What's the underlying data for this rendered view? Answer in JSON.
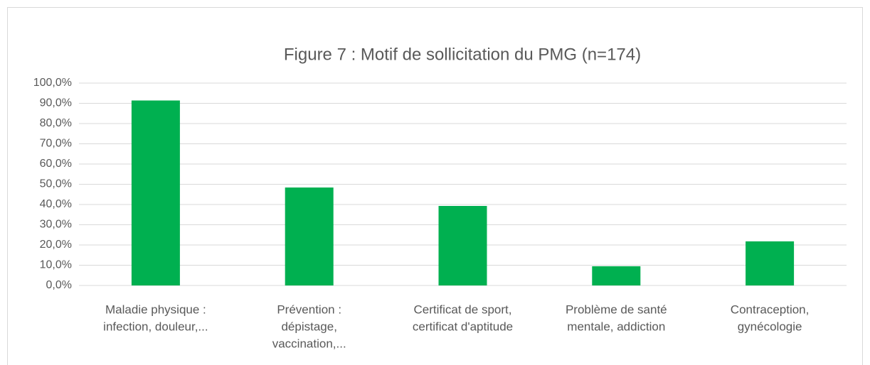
{
  "chart_data": {
    "type": "bar",
    "title": "Figure 7 : Motif de sollicitation du PMG (n=174)",
    "categories": [
      [
        "Maladie physique :",
        "infection, douleur,..."
      ],
      [
        "Prévention :",
        "dépistage,",
        "vaccination,..."
      ],
      [
        "Certificat de sport,",
        "certificat d'aptitude"
      ],
      [
        "Problème de santé",
        "mentale, addiction"
      ],
      [
        "Contraception,",
        "gynécologie"
      ]
    ],
    "values": [
      91.4,
      48.4,
      39.3,
      9.5,
      21.8
    ],
    "color": "#00b050",
    "ylim": [
      0,
      100
    ],
    "yticks": [
      {
        "value": 0,
        "label": "0,0%"
      },
      {
        "value": 10,
        "label": "10,0%"
      },
      {
        "value": 20,
        "label": "20,0%"
      },
      {
        "value": 30,
        "label": "30,0%"
      },
      {
        "value": 40,
        "label": "40,0%"
      },
      {
        "value": 50,
        "label": "50,0%"
      },
      {
        "value": 60,
        "label": "60,0%"
      },
      {
        "value": 70,
        "label": "70,0%"
      },
      {
        "value": 80,
        "label": "80,0%"
      },
      {
        "value": 90,
        "label": "90,0%"
      },
      {
        "value": 100,
        "label": "100,0%"
      }
    ],
    "grid": true
  }
}
